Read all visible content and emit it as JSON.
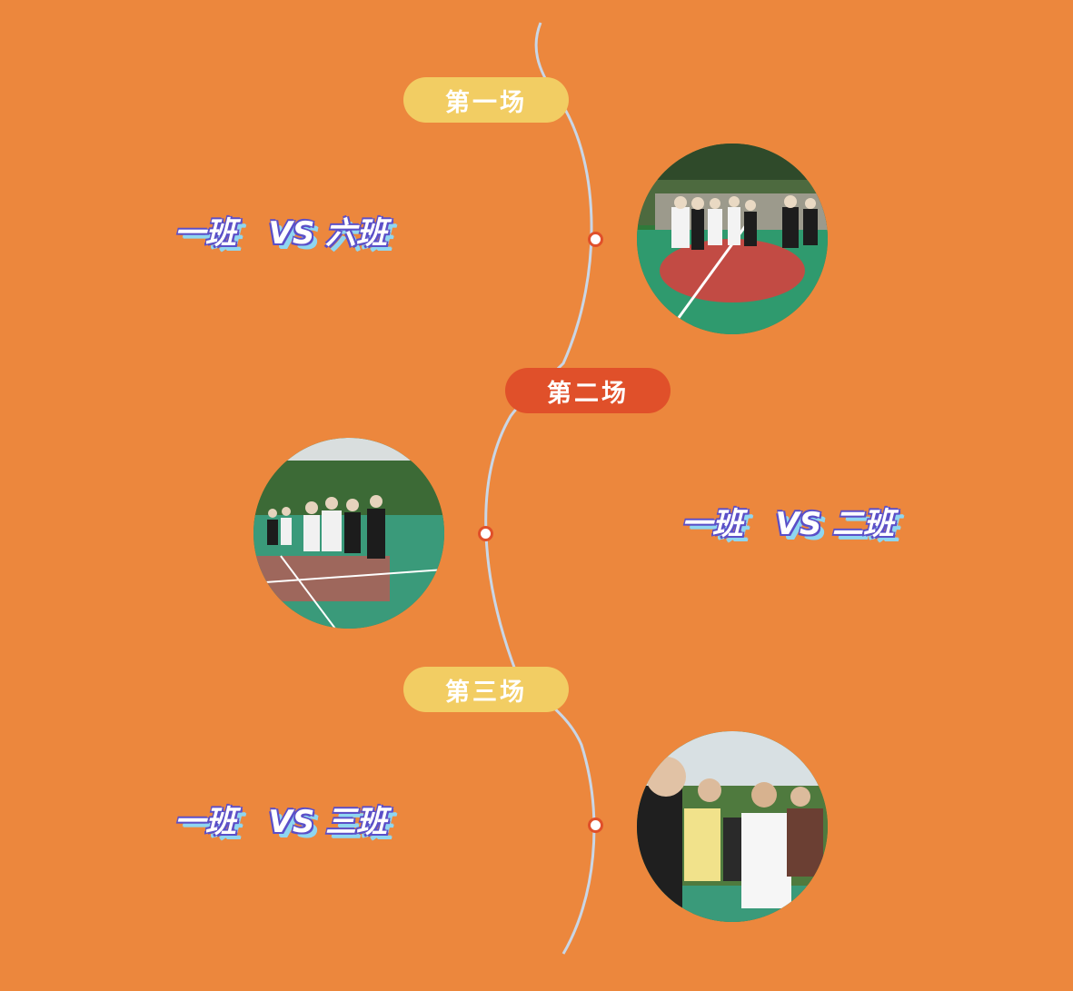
{
  "matches": [
    {
      "label": "第一场",
      "matchup": "一班   VS 六班",
      "label_color": "#f2cd63",
      "photo_alt": "basketball-court-team-handshake-photo"
    },
    {
      "label": "第二场",
      "matchup": "一班   VS 二班",
      "label_color": "#e0502a",
      "photo_alt": "basketball-court-players-gathering-photo"
    },
    {
      "label": "第三场",
      "matchup": "一班   VS 三班",
      "label_color": "#f2cd63",
      "photo_alt": "basketball-players-jersey-closeup-photo"
    }
  ],
  "colors": {
    "background": "#ec873d",
    "timeline_line": "#c9d6e6",
    "dot_border": "#e0502a",
    "text_outline": "#5b4fc8",
    "text_shadow": "#8fd6f0"
  }
}
